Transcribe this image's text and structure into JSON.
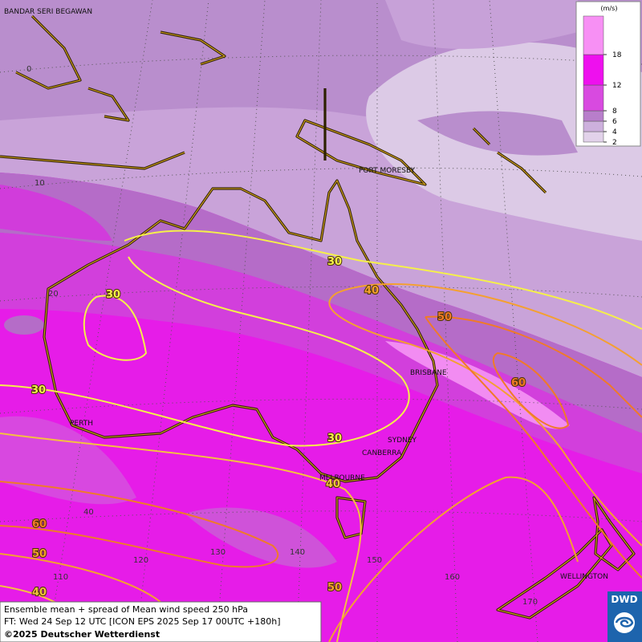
{
  "places": [
    "BANDAR SERI BEGAWAN",
    "PORT MORESBY",
    "BRISBANE",
    "SYDNEY",
    "CANBERRA",
    "MELBOURNE",
    "PERTH",
    "WELLINGTON"
  ],
  "latitudes": [
    0,
    10,
    20,
    40
  ],
  "longitudes": [
    110,
    120,
    130,
    140,
    150,
    160,
    170
  ],
  "contour_labels": [
    30,
    40,
    50,
    60,
    30,
    30,
    30,
    40,
    60,
    50,
    40,
    50
  ],
  "legend": {
    "unit": "(m/s)",
    "levels": [
      2,
      4,
      6,
      8,
      12,
      18
    ],
    "colors": [
      "#e2d2ea",
      "#cdb0dd",
      "#b87ecb",
      "#d84ae0",
      "#ee10ee",
      "#f790f4"
    ]
  },
  "info": {
    "lines": [
      "Ensemble mean + spread of Mean wind speed 250 hPa",
      "FT: Wed 24 Sep 12 UTC [ICON EPS 2025 Sep 17 00UTC +180h]"
    ],
    "copyright": "©2025 Deutscher Wetterdienst"
  },
  "logo": "DWD"
}
